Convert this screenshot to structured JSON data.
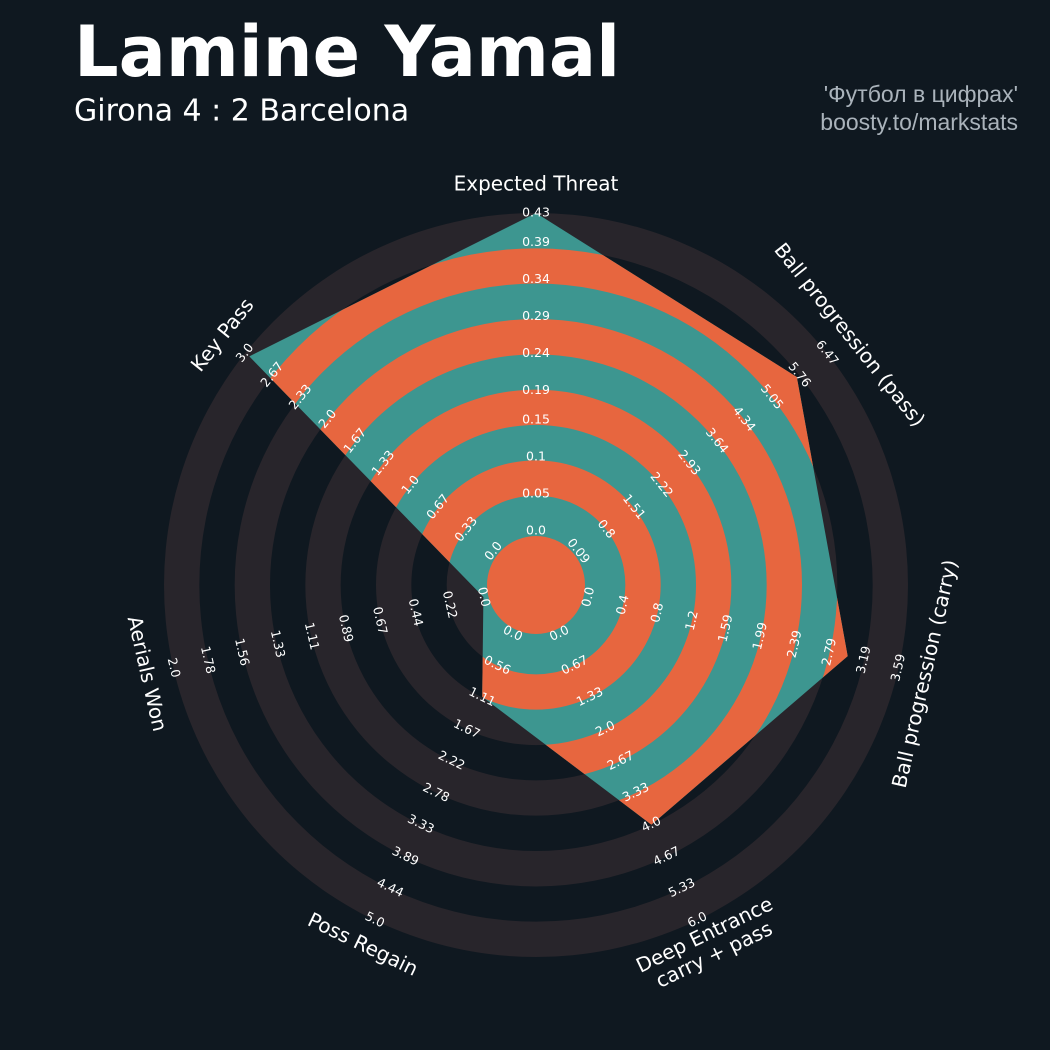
{
  "chart_data": {
    "type": "radar",
    "title": "Lamine Yamal",
    "subtitle": "Girona 4 : 2 Barcelona",
    "credit": [
      "'Футбол в цифрах'",
      "boosty.to/markstats"
    ],
    "categories": [
      "Expected Threat",
      "Ball progression (pass)",
      "Ball progression (carry)",
      "Deep Entrance\ncarry + pass",
      "Poss Regain",
      "Aerials Won",
      "Key Pass"
    ],
    "values": [
      0.43,
      5.7,
      3.0,
      4.0,
      1.1,
      0.0,
      2.95
    ],
    "axes": [
      {
        "lim": [
          0,
          0.43
        ],
        "ticks": [
          {
            "value": 0,
            "label": "0.0"
          },
          0.05,
          0.1,
          0.15,
          0.19,
          0.24,
          0.29,
          0.34,
          0.39,
          0.43
        ]
      },
      {
        "lim": [
          0.09,
          6.47
        ],
        "ticks": [
          0.09,
          0.8,
          1.51,
          2.22,
          2.93,
          3.64,
          4.34,
          5.05,
          5.76,
          6.47
        ]
      },
      {
        "lim": [
          0,
          3.59
        ],
        "ticks": [
          {
            "value": 0,
            "label": "0.0"
          },
          0.4,
          0.8,
          1.2,
          1.59,
          1.99,
          2.39,
          2.79,
          3.19,
          3.59
        ]
      },
      {
        "lim": [
          0,
          6
        ],
        "ticks": [
          {
            "value": 0,
            "label": "0.0"
          },
          0.67,
          1.33,
          {
            "value": 2,
            "label": "2.0"
          },
          2.67,
          3.33,
          {
            "value": 4,
            "label": "4.0"
          },
          4.67,
          5.33,
          {
            "value": 6,
            "label": "6.0"
          }
        ]
      },
      {
        "lim": [
          0,
          5
        ],
        "ticks": [
          {
            "value": 0,
            "label": "0.0"
          },
          0.56,
          1.11,
          1.67,
          2.22,
          2.78,
          3.33,
          3.89,
          4.44,
          {
            "value": 5,
            "label": "5.0"
          }
        ]
      },
      {
        "lim": [
          0,
          2
        ],
        "ticks": [
          {
            "value": 0,
            "label": "0.0"
          },
          0.22,
          0.44,
          0.67,
          0.89,
          1.11,
          1.33,
          1.56,
          1.78,
          {
            "value": 2,
            "label": "2.0"
          }
        ]
      },
      {
        "lim": [
          0,
          3
        ],
        "ticks": [
          {
            "value": 0,
            "label": "0.0"
          },
          0.33,
          0.67,
          {
            "value": 1,
            "label": "1.0"
          },
          1.33,
          1.67,
          {
            "value": 2,
            "label": "2.0"
          },
          2.33,
          2.67,
          {
            "value": 3,
            "label": "3.0"
          }
        ]
      }
    ],
    "color": "#3d9690",
    "ring_color": "#e7663f"
  }
}
